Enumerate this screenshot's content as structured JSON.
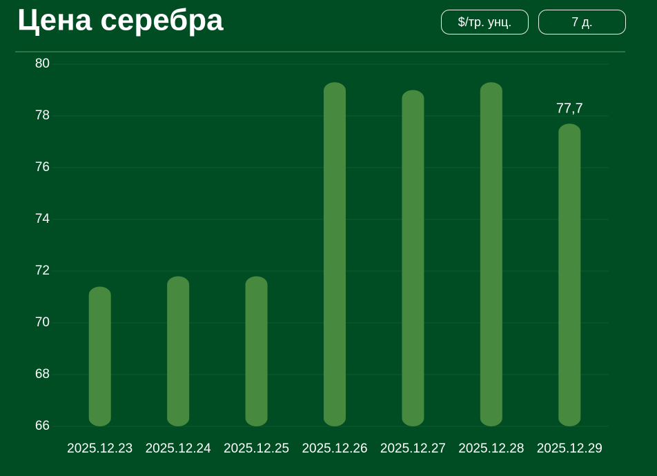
{
  "chart_data": {
    "type": "bar",
    "title": "Цена серебра",
    "categories": [
      "2025.12.23",
      "2025.12.24",
      "2025.12.25",
      "2025.12.26",
      "2025.12.27",
      "2025.12.28",
      "2025.12.29"
    ],
    "values": [
      71.4,
      71.8,
      71.8,
      79.3,
      79.0,
      79.3,
      77.7
    ],
    "value_labels": [
      null,
      null,
      null,
      null,
      null,
      null,
      "77,7"
    ],
    "color": "#478a3f",
    "ylim": [
      66,
      80
    ],
    "yticks": [
      66,
      68,
      70,
      72,
      74,
      76,
      78,
      80
    ],
    "grid": true
  },
  "controls": {
    "unit": "$/тр. унц.",
    "period": "7 д."
  }
}
